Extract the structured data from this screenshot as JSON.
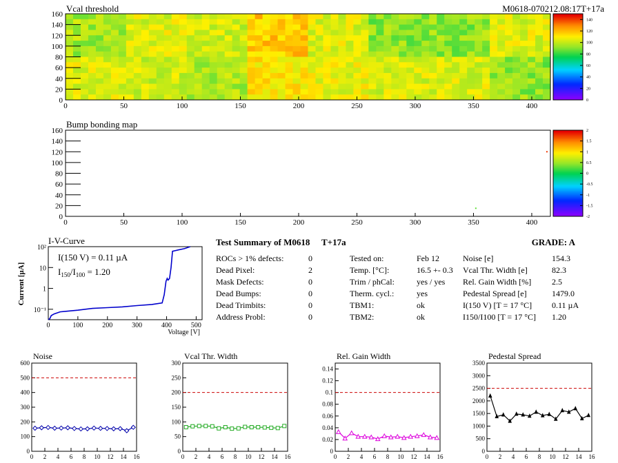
{
  "module_id": "M0618-070212.08:17T+17a",
  "colors": {
    "series_line": "#0000cc",
    "cut_line": "#cc0000",
    "noise": "#0000aa",
    "vcal": "#22aa22",
    "gain": "#dd00dd",
    "ped": "#000000"
  },
  "chart_data": [
    {
      "type": "heatmap",
      "title": "Vcal threshold",
      "xlim": [
        0,
        416
      ],
      "ylim": [
        0,
        160
      ],
      "x_ticks": [
        0,
        50,
        100,
        150,
        200,
        250,
        300,
        350,
        400
      ],
      "y_ticks": [
        0,
        20,
        40,
        60,
        80,
        100,
        120,
        140,
        160
      ],
      "z_range": [
        0,
        150
      ],
      "z_ticks": [
        0,
        20,
        40,
        60,
        80,
        100,
        120,
        140
      ],
      "palette_note": "violet-blue-cyan-green-yellow-orange-red",
      "roc_grid": {
        "cols": 8,
        "rows": 2
      },
      "roc_mean_threshold": [
        [
          96,
          106,
          103,
          118,
          106,
          92,
          93,
          106
        ],
        [
          106,
          103,
          98,
          112,
          108,
          104,
          105,
          93
        ]
      ]
    },
    {
      "type": "heatmap",
      "title": "Bump bonding map",
      "xlim": [
        0,
        416
      ],
      "ylim": [
        0,
        160
      ],
      "x_ticks": [
        0,
        50,
        100,
        150,
        200,
        250,
        300,
        350,
        400
      ],
      "y_ticks": [
        0,
        20,
        40,
        60,
        80,
        100,
        120,
        140,
        160
      ],
      "z_range": [
        -2,
        2
      ],
      "z_ticks": [
        -2,
        -1.5,
        -1,
        -0.5,
        0,
        0.5,
        1,
        1.5,
        2
      ],
      "points": [
        {
          "x": 352,
          "y": 15,
          "z": 0.3
        },
        {
          "x": 413,
          "y": 120,
          "z": 1.8
        }
      ]
    },
    {
      "type": "line",
      "title": "I-V-Curve",
      "xlabel": "Voltage [V]",
      "ylabel": "Current [µA]",
      "xlim": [
        0,
        520
      ],
      "ylim_log10": [
        -1.5,
        2
      ],
      "x_ticks": [
        0,
        100,
        200,
        300,
        400,
        500
      ],
      "y_ticks": [
        {
          "value": -1,
          "label": "10⁻¹"
        },
        {
          "value": 0,
          "label": "1"
        },
        {
          "value": 1,
          "label": "10"
        },
        {
          "value": 2,
          "label": "10²"
        }
      ],
      "annotation_1": "I(150 V) = 0.11 µA",
      "annotation_2": "I150/I100 = 1.20",
      "x": [
        0,
        5,
        10,
        20,
        40,
        60,
        100,
        150,
        200,
        250,
        300,
        350,
        385,
        392,
        398,
        402,
        405,
        410,
        415,
        420,
        440,
        460,
        480
      ],
      "y": [
        0.025,
        0.035,
        0.05,
        0.06,
        0.075,
        0.08,
        0.09,
        0.11,
        0.12,
        0.13,
        0.15,
        0.17,
        0.2,
        0.5,
        2.2,
        3,
        2.5,
        3,
        10,
        60,
        70,
        80,
        100
      ]
    },
    {
      "type": "line",
      "title": "Noise",
      "xlim": [
        0,
        16
      ],
      "ylim": [
        0,
        600
      ],
      "x_ticks": [
        0,
        2,
        4,
        6,
        8,
        10,
        12,
        14,
        16
      ],
      "y_ticks": [
        0,
        100,
        200,
        300,
        400,
        500,
        600
      ],
      "cut": 500,
      "x": [
        0,
        1,
        2,
        3,
        4,
        5,
        6,
        7,
        8,
        9,
        10,
        11,
        12,
        13,
        14,
        15
      ],
      "values": [
        157,
        160,
        162,
        157,
        158,
        160,
        155,
        152,
        153,
        158,
        156,
        155,
        153,
        154,
        140,
        163
      ]
    },
    {
      "type": "line",
      "title": "Vcal Thr. Width",
      "xlim": [
        0,
        16
      ],
      "ylim": [
        0,
        300
      ],
      "x_ticks": [
        0,
        2,
        4,
        6,
        8,
        10,
        12,
        14,
        16
      ],
      "y_ticks": [
        0,
        50,
        100,
        150,
        200,
        250,
        300
      ],
      "cut": 200,
      "x": [
        0,
        1,
        2,
        3,
        4,
        5,
        6,
        7,
        8,
        9,
        10,
        11,
        12,
        13,
        14,
        15
      ],
      "values": [
        82,
        85,
        86,
        86,
        85,
        78,
        82,
        77,
        78,
        83,
        82,
        82,
        81,
        80,
        79,
        86
      ]
    },
    {
      "type": "line",
      "title": "Rel. Gain Width",
      "xlim": [
        0,
        16
      ],
      "ylim": [
        0,
        0.15
      ],
      "x_ticks": [
        0,
        2,
        4,
        6,
        8,
        10,
        12,
        14,
        16
      ],
      "y_ticks": [
        0,
        0.02,
        0.04,
        0.06,
        0.08,
        0.1,
        0.12,
        0.14
      ],
      "cut": 0.1,
      "x": [
        0,
        1,
        2,
        3,
        4,
        5,
        6,
        7,
        8,
        9,
        10,
        11,
        12,
        13,
        14,
        15
      ],
      "values": [
        0.033,
        0.022,
        0.031,
        0.025,
        0.025,
        0.024,
        0.021,
        0.026,
        0.024,
        0.025,
        0.023,
        0.025,
        0.026,
        0.028,
        0.024,
        0.023
      ]
    },
    {
      "type": "line",
      "title": "Pedestal Spread",
      "xlim": [
        0,
        16
      ],
      "ylim": [
        0,
        3500
      ],
      "x_ticks": [
        0,
        2,
        4,
        6,
        8,
        10,
        12,
        14,
        16
      ],
      "y_ticks": [
        0,
        500,
        1000,
        1500,
        2000,
        2500,
        3000,
        3500
      ],
      "cut": 2500,
      "x": [
        0,
        1,
        2,
        3,
        4,
        5,
        6,
        7,
        8,
        9,
        10,
        11,
        12,
        13,
        14,
        15
      ],
      "values": [
        2200,
        1380,
        1450,
        1200,
        1480,
        1450,
        1400,
        1560,
        1420,
        1470,
        1280,
        1620,
        1560,
        1700,
        1300,
        1430
      ]
    }
  ],
  "summary": {
    "title": "Test Summary of M0618",
    "temp_tag": "T+17a",
    "grade": "GRADE:  A",
    "defects": [
      {
        "label": "ROCs > 1% defects:",
        "value": "0"
      },
      {
        "label": "Dead Pixel:",
        "value": "2"
      },
      {
        "label": "Mask Defects:",
        "value": "0"
      },
      {
        "label": "Dead Bumps:",
        "value": "0"
      },
      {
        "label": "Dead Trimbits:",
        "value": "0"
      },
      {
        "label": "Address Probl:",
        "value": "0"
      }
    ],
    "conditions": [
      {
        "label": "Tested on:",
        "value": "Feb 12"
      },
      {
        "label": "Temp. [°C]:",
        "value": "16.5 +- 0.3"
      },
      {
        "label": "Trim / phCal:",
        "value": "yes / yes"
      },
      {
        "label": "Therm. cycl.:",
        "value": "yes"
      },
      {
        "label": "TBM1:",
        "value": "ok"
      },
      {
        "label": "TBM2:",
        "value": "ok"
      }
    ],
    "results": [
      {
        "label": "Noise [e]",
        "value": "154.3"
      },
      {
        "label": "Vcal Thr. Width [e]",
        "value": "82.3"
      },
      {
        "label": "Rel. Gain Width [%]",
        "value": "2.5"
      },
      {
        "label": "Pedestal Spread [e]",
        "value": "1479.0"
      },
      {
        "label": "I(150 V) [T = 17 °C]",
        "value": "0.11 µA"
      },
      {
        "label": "I150/I100  [T = 17 °C]",
        "value": "1.20"
      }
    ]
  }
}
